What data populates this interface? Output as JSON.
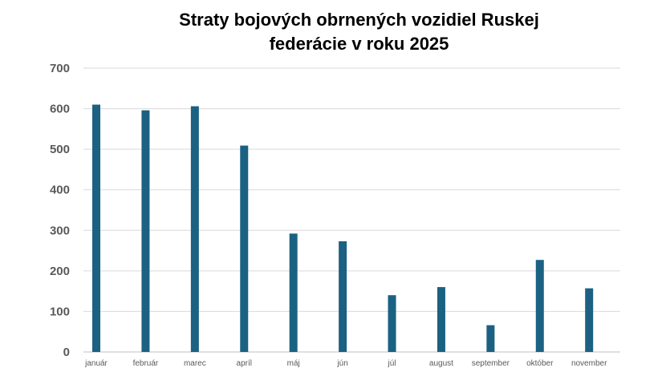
{
  "chart_data": {
    "type": "bar",
    "title_lines": [
      "Straty bojových obrnených vozidiel Ruskej",
      "federácie v roku 2025"
    ],
    "categories": [
      "január",
      "február",
      "marec",
      "apríl",
      "máj",
      "jún",
      "júl",
      "august",
      "september",
      "október",
      "november"
    ],
    "values": [
      610,
      596,
      606,
      509,
      292,
      273,
      140,
      160,
      66,
      227,
      157
    ],
    "ylim": [
      0,
      700
    ],
    "yticks": [
      0,
      100,
      200,
      300,
      400,
      500,
      600,
      700
    ],
    "grid": true,
    "legend": "none",
    "colors": {
      "bar": "#1b6182",
      "grid": "#d9d9d9",
      "axis": "#bfbfbf",
      "tick_text": "#595959"
    }
  }
}
